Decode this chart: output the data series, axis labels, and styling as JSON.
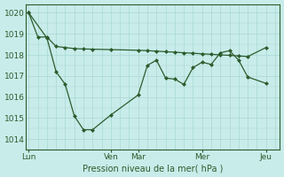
{
  "background_color": "#c8ecea",
  "grid_color": "#a8d8d4",
  "line_color": "#2d5c2d",
  "marker_color": "#2d5c2d",
  "ylim": [
    1013.5,
    1020.4
  ],
  "yticks": [
    1014,
    1015,
    1016,
    1017,
    1018,
    1019,
    1020
  ],
  "xlabel": "Pression niveau de la mer( hPa )",
  "xlabel_color": "#2d5c2d",
  "xtick_labels": [
    "Lun",
    "Ven",
    "Mar",
    "Mer",
    "Jeu"
  ],
  "xtick_positions": [
    0.0,
    9.0,
    12.0,
    19.0,
    26.0
  ],
  "xlim": [
    -0.3,
    27.5
  ],
  "n_minor_x": 27,
  "line1_x": [
    0,
    1,
    2,
    3,
    4,
    5,
    6,
    7,
    9,
    12,
    13,
    14,
    15,
    16,
    17,
    18,
    19,
    20,
    21,
    22,
    23,
    24,
    26
  ],
  "line1_y": [
    1020.0,
    1018.85,
    1018.85,
    1018.4,
    1018.35,
    1018.3,
    1018.28,
    1018.27,
    1018.25,
    1018.22,
    1018.2,
    1018.18,
    1018.15,
    1018.13,
    1018.1,
    1018.08,
    1018.05,
    1018.03,
    1018.0,
    1017.98,
    1017.95,
    1017.92,
    1018.35
  ],
  "line2_x": [
    0,
    2,
    3,
    4,
    5,
    6,
    7,
    9,
    12,
    13,
    14,
    15,
    16,
    17,
    18,
    19,
    20,
    21,
    22,
    23,
    24,
    26
  ],
  "line2_y": [
    1020.0,
    1018.8,
    1017.2,
    1016.6,
    1015.1,
    1014.45,
    1014.45,
    1015.15,
    1016.1,
    1017.5,
    1017.75,
    1016.9,
    1016.85,
    1016.6,
    1017.4,
    1017.65,
    1017.55,
    1018.1,
    1018.2,
    1017.75,
    1016.95,
    1016.65
  ],
  "line2_markers_x": [
    0,
    2,
    3,
    4,
    5,
    6,
    7,
    9,
    12,
    13,
    14,
    15,
    16,
    17,
    18,
    19,
    20,
    21,
    22,
    23,
    24,
    26
  ],
  "line2_markers_y": [
    1020.0,
    1018.8,
    1017.2,
    1016.6,
    1015.1,
    1014.45,
    1014.45,
    1015.15,
    1016.1,
    1017.5,
    1017.75,
    1016.9,
    1016.85,
    1016.6,
    1017.4,
    1017.65,
    1017.55,
    1018.1,
    1018.2,
    1017.75,
    1016.95,
    1016.65
  ]
}
